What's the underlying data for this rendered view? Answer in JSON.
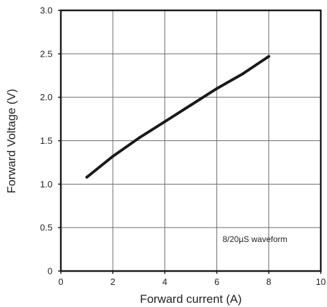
{
  "chart_data": {
    "type": "line",
    "title": "",
    "xlabel": "Forward current (A)",
    "ylabel": "Forward Voltage (V)",
    "xlim": [
      0,
      10
    ],
    "ylim": [
      0,
      3.0
    ],
    "x_ticks": [
      0,
      2,
      4,
      6,
      8,
      10
    ],
    "y_ticks": [
      0,
      0.5,
      1.0,
      1.5,
      2.0,
      2.5,
      3.0
    ],
    "x_tick_labels": [
      "0",
      "2",
      "4",
      "6",
      "8",
      "10"
    ],
    "y_tick_labels": [
      "0",
      "0.5",
      "1.0",
      "1.5",
      "2.0",
      "2.5",
      "3.0"
    ],
    "grid": true,
    "annotation": "8/20µS waveform",
    "colors": {
      "line": "#1a1a1a",
      "grid": "#6b6b6b",
      "frame": "#1a1a1a"
    },
    "series": [
      {
        "x": [
          1,
          2,
          3,
          4,
          5,
          6,
          7,
          8
        ],
        "y": [
          1.08,
          1.32,
          1.53,
          1.72,
          1.91,
          2.1,
          2.27,
          2.47
        ]
      }
    ]
  }
}
